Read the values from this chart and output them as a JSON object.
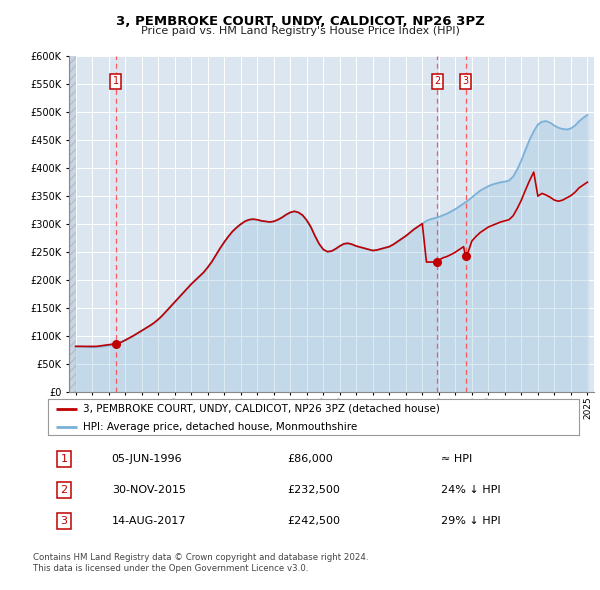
{
  "title": "3, PEMBROKE COURT, UNDY, CALDICOT, NP26 3PZ",
  "subtitle": "Price paid vs. HM Land Registry's House Price Index (HPI)",
  "ylim": [
    0,
    600000
  ],
  "yticks": [
    0,
    50000,
    100000,
    150000,
    200000,
    250000,
    300000,
    350000,
    400000,
    450000,
    500000,
    550000,
    600000
  ],
  "xlim_start": 1993.6,
  "xlim_end": 2025.4,
  "bg_color": "#dce6f0",
  "grid_color": "#ffffff",
  "transactions": [
    {
      "date_label": "05-JUN-1996",
      "date_x": 1996.44,
      "price": 86000,
      "label": "1",
      "rel": "≈ HPI"
    },
    {
      "date_label": "30-NOV-2015",
      "date_x": 2015.92,
      "price": 232500,
      "label": "2",
      "rel": "24% ↓ HPI"
    },
    {
      "date_label": "14-AUG-2017",
      "date_x": 2017.62,
      "price": 242500,
      "label": "3",
      "rel": "29% ↓ HPI"
    }
  ],
  "legend_line1": "3, PEMBROKE COURT, UNDY, CALDICOT, NP26 3PZ (detached house)",
  "legend_line2": "HPI: Average price, detached house, Monmouthshire",
  "footer": "Contains HM Land Registry data © Crown copyright and database right 2024.\nThis data is licensed under the Open Government Licence v3.0.",
  "hpi_color": "#7ab0d8",
  "price_color": "#c00000",
  "marker_color": "#c00000",
  "vline_color": "#ff4444",
  "hpi_data_x": [
    1994.0,
    1994.25,
    1994.5,
    1994.75,
    1995.0,
    1995.25,
    1995.5,
    1995.75,
    1996.0,
    1996.25,
    1996.5,
    1996.75,
    1997.0,
    1997.25,
    1997.5,
    1997.75,
    1998.0,
    1998.25,
    1998.5,
    1998.75,
    1999.0,
    1999.25,
    1999.5,
    1999.75,
    2000.0,
    2000.25,
    2000.5,
    2000.75,
    2001.0,
    2001.25,
    2001.5,
    2001.75,
    2002.0,
    2002.25,
    2002.5,
    2002.75,
    2003.0,
    2003.25,
    2003.5,
    2003.75,
    2004.0,
    2004.25,
    2004.5,
    2004.75,
    2005.0,
    2005.25,
    2005.5,
    2005.75,
    2006.0,
    2006.25,
    2006.5,
    2006.75,
    2007.0,
    2007.25,
    2007.5,
    2007.75,
    2008.0,
    2008.25,
    2008.5,
    2008.75,
    2009.0,
    2009.25,
    2009.5,
    2009.75,
    2010.0,
    2010.25,
    2010.5,
    2010.75,
    2011.0,
    2011.25,
    2011.5,
    2011.75,
    2012.0,
    2012.25,
    2012.5,
    2012.75,
    2013.0,
    2013.25,
    2013.5,
    2013.75,
    2014.0,
    2014.25,
    2014.5,
    2014.75,
    2015.0,
    2015.25,
    2015.5,
    2015.75,
    2016.0,
    2016.25,
    2016.5,
    2016.75,
    2017.0,
    2017.25,
    2017.5,
    2017.75,
    2018.0,
    2018.25,
    2018.5,
    2018.75,
    2019.0,
    2019.25,
    2019.5,
    2019.75,
    2020.0,
    2020.25,
    2020.5,
    2020.75,
    2021.0,
    2021.25,
    2021.5,
    2021.75,
    2022.0,
    2022.25,
    2022.5,
    2022.75,
    2023.0,
    2023.25,
    2023.5,
    2023.75,
    2024.0,
    2024.25,
    2024.5,
    2024.75,
    2025.0
  ],
  "hpi_data_y": [
    82000,
    82000,
    81500,
    81000,
    80500,
    81000,
    81500,
    82500,
    83500,
    85000,
    87000,
    89500,
    93000,
    97000,
    101000,
    105500,
    110000,
    114500,
    119000,
    124000,
    130000,
    137000,
    145000,
    153000,
    161000,
    169000,
    177000,
    185000,
    193000,
    200000,
    207000,
    214000,
    223000,
    233000,
    245000,
    257000,
    268000,
    278000,
    287000,
    294000,
    300000,
    305000,
    308000,
    309000,
    308000,
    306000,
    305000,
    304000,
    305000,
    308000,
    312000,
    317000,
    321000,
    323000,
    321000,
    316000,
    307000,
    295000,
    279000,
    265000,
    255000,
    251000,
    252000,
    256000,
    261000,
    265000,
    266000,
    264000,
    261000,
    259000,
    257000,
    255000,
    253000,
    254000,
    256000,
    258000,
    260000,
    264000,
    269000,
    274000,
    279000,
    285000,
    291000,
    296000,
    301000,
    306000,
    309000,
    311000,
    313000,
    316000,
    319000,
    323000,
    327000,
    332000,
    337000,
    342000,
    348000,
    354000,
    360000,
    364000,
    368000,
    371000,
    373000,
    375000,
    376000,
    378000,
    385000,
    398000,
    414000,
    433000,
    451000,
    466000,
    478000,
    483000,
    484000,
    481000,
    476000,
    472000,
    470000,
    469000,
    471000,
    476000,
    484000,
    490000,
    495000
  ],
  "price_data_x": [
    1994.0,
    1994.25,
    1994.5,
    1994.75,
    1995.0,
    1995.25,
    1995.5,
    1995.75,
    1996.0,
    1996.25,
    1996.44,
    1996.5,
    1996.75,
    1997.0,
    1997.25,
    1997.5,
    1997.75,
    1998.0,
    1998.25,
    1998.5,
    1998.75,
    1999.0,
    1999.25,
    1999.5,
    1999.75,
    2000.0,
    2000.25,
    2000.5,
    2000.75,
    2001.0,
    2001.25,
    2001.5,
    2001.75,
    2002.0,
    2002.25,
    2002.5,
    2002.75,
    2003.0,
    2003.25,
    2003.5,
    2003.75,
    2004.0,
    2004.25,
    2004.5,
    2004.75,
    2005.0,
    2005.25,
    2005.5,
    2005.75,
    2006.0,
    2006.25,
    2006.5,
    2006.75,
    2007.0,
    2007.25,
    2007.5,
    2007.75,
    2008.0,
    2008.25,
    2008.5,
    2008.75,
    2009.0,
    2009.25,
    2009.5,
    2009.75,
    2010.0,
    2010.25,
    2010.5,
    2010.75,
    2011.0,
    2011.25,
    2011.5,
    2011.75,
    2012.0,
    2012.25,
    2012.5,
    2012.75,
    2013.0,
    2013.25,
    2013.5,
    2013.75,
    2014.0,
    2014.25,
    2014.5,
    2014.75,
    2015.0,
    2015.25,
    2015.5,
    2015.92,
    2016.0,
    2016.25,
    2016.5,
    2016.75,
    2017.0,
    2017.25,
    2017.5,
    2017.62,
    2017.75,
    2018.0,
    2018.25,
    2018.5,
    2018.75,
    2019.0,
    2019.25,
    2019.5,
    2019.75,
    2020.0,
    2020.25,
    2020.5,
    2020.75,
    2021.0,
    2021.25,
    2021.5,
    2021.75,
    2022.0,
    2022.25,
    2022.5,
    2022.75,
    2023.0,
    2023.25,
    2023.5,
    2023.75,
    2024.0,
    2024.25,
    2024.5,
    2024.75,
    2025.0
  ],
  "price_data_y": [
    82000,
    82000,
    82000,
    82000,
    82000,
    82000,
    83000,
    84000,
    85000,
    86000,
    86000,
    87000,
    89500,
    93000,
    97000,
    101000,
    105500,
    110000,
    114500,
    119000,
    124000,
    130000,
    137000,
    145000,
    153000,
    161000,
    169000,
    177000,
    185000,
    193000,
    200000,
    207000,
    214000,
    223000,
    233000,
    245000,
    257000,
    268000,
    278000,
    287000,
    294000,
    300000,
    305000,
    308000,
    309000,
    308000,
    306000,
    305000,
    304000,
    305000,
    308000,
    312000,
    317000,
    321000,
    323000,
    321000,
    316000,
    307000,
    295000,
    279000,
    265000,
    255000,
    251000,
    252000,
    256000,
    261000,
    265000,
    266000,
    264000,
    261000,
    259000,
    257000,
    255000,
    253000,
    254000,
    256000,
    258000,
    260000,
    264000,
    269000,
    274000,
    279000,
    285000,
    291000,
    296000,
    301000,
    232500,
    232500,
    232500,
    236000,
    240000,
    242500,
    246000,
    250000,
    255000,
    260000,
    242500,
    248000,
    270000,
    278000,
    285000,
    290000,
    295000,
    298000,
    301000,
    304000,
    306000,
    308000,
    315000,
    328000,
    343000,
    361000,
    378000,
    393000,
    350000,
    355000,
    352000,
    348000,
    343000,
    341000,
    343000,
    347000,
    351000,
    357000,
    365000,
    370000,
    375000
  ]
}
